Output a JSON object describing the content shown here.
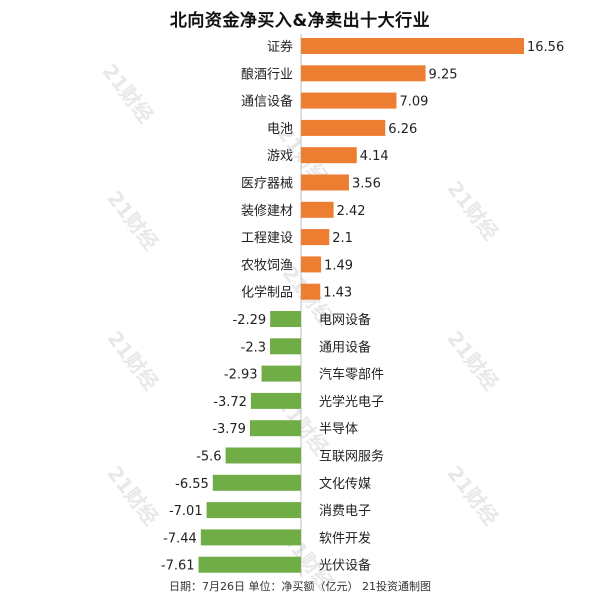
{
  "chart_data": {
    "type": "bar",
    "orientation": "horizontal",
    "title": "北向资金净买入&净卖出十大行业",
    "categories": [
      "证券",
      "酿酒行业",
      "通信设备",
      "电池",
      "游戏",
      "医疗器械",
      "装修建材",
      "工程建设",
      "农牧饲渔",
      "化学制品",
      "电网设备",
      "通用设备",
      "汽车零部件",
      "光学光电子",
      "半导体",
      "互联网服务",
      "文化传媒",
      "消费电子",
      "软件开发",
      "光伏设备"
    ],
    "values": [
      16.56,
      9.25,
      7.09,
      6.26,
      4.14,
      3.56,
      2.42,
      2.1,
      1.49,
      1.43,
      -2.29,
      -2.3,
      -2.93,
      -3.72,
      -3.79,
      -5.6,
      -6.55,
      -7.01,
      -7.44,
      -7.61
    ],
    "value_labels": [
      "16.56",
      "9.25",
      "7.09",
      "6.26",
      "4.14",
      "3.56",
      "2.42",
      "2.1",
      "1.49",
      "1.43",
      "-2.29",
      "-2.3",
      "-2.93",
      "-3.72",
      "-3.79",
      "-5.6",
      "-6.55",
      "-7.01",
      "-7.44",
      "-7.61"
    ],
    "colors": {
      "positive": "#ED7D31",
      "negative": "#70AD47"
    },
    "xlim": [
      -8.5,
      16.56
    ],
    "grid": false,
    "legend": "none"
  },
  "footer": "日期：7月26日 单位：净买额（亿元） 21投资通制图",
  "watermark": "21财经"
}
